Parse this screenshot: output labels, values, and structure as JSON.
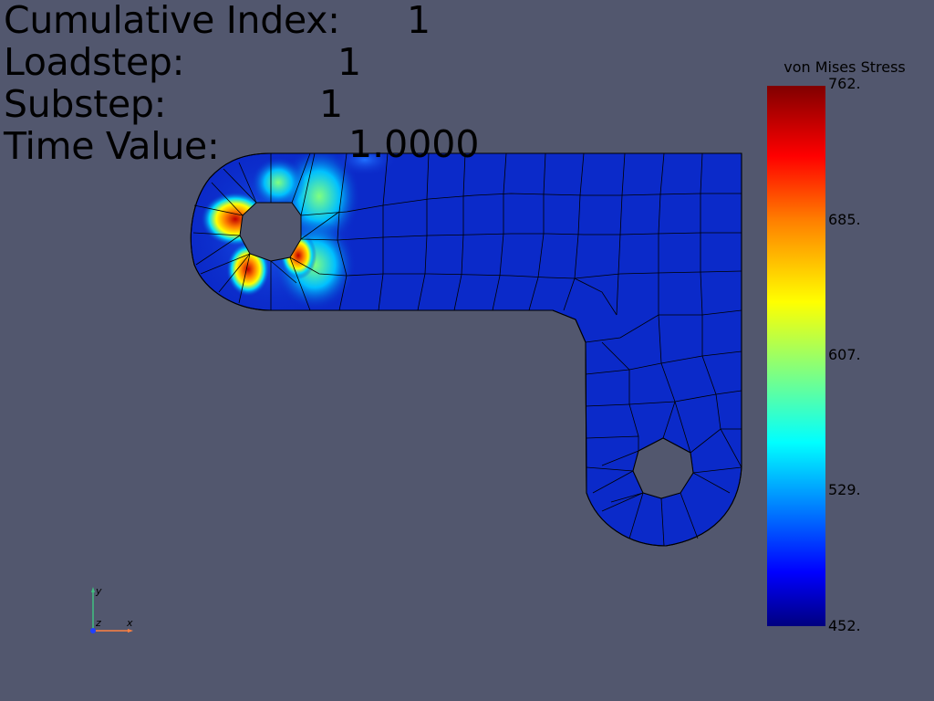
{
  "info": {
    "cumulative_index_label": "Cumulative Index:",
    "cumulative_index_value": "1",
    "loadstep_label": "Loadstep:",
    "loadstep_value": "1",
    "substep_label": "Substep:",
    "substep_value": "1",
    "time_value_label": "Time Value:",
    "time_value_value": "1.0000"
  },
  "scalar_bar": {
    "title": "von Mises Stress",
    "labels": [
      "762.",
      "685.",
      "607.",
      "529.",
      "452."
    ],
    "colormap": [
      "#800000",
      "#ff0000",
      "#ff8000",
      "#ffff00",
      "#80ff80",
      "#00ffff",
      "#0080ff",
      "#0000ff",
      "#00007f"
    ]
  },
  "axes": {
    "x": "x",
    "y": "y",
    "z": "z"
  },
  "colors": {
    "background": "#52576e",
    "mesh_base": "#0b2ac9",
    "mesh_edge": "#000000",
    "axis_x": "#ff8040",
    "axis_y": "#40c080",
    "axis_z": "#2040ff"
  }
}
